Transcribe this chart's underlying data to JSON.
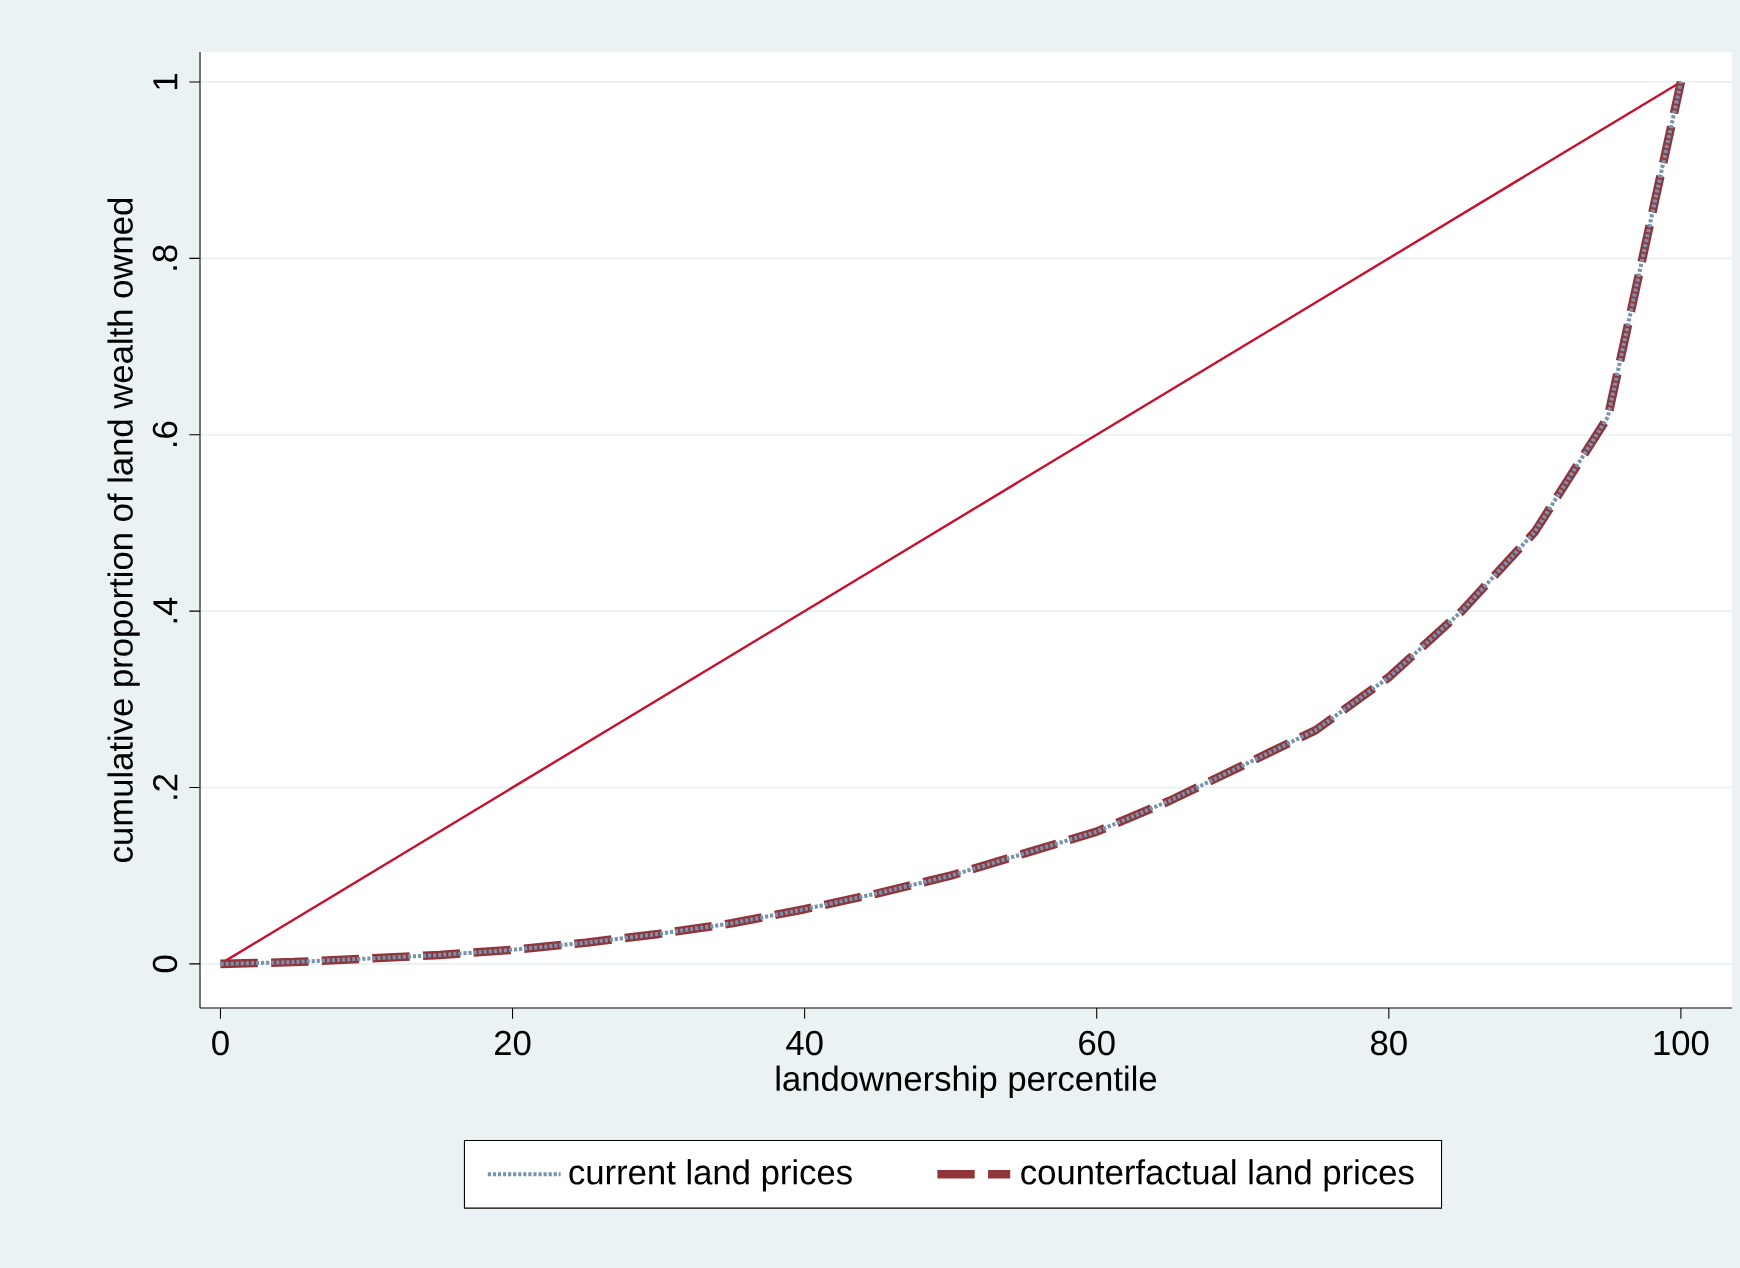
{
  "chart_data": {
    "type": "line",
    "xlabel": "landownership percentile",
    "ylabel": "cumulative proportion of land wealth owned",
    "x": [
      0,
      5,
      10,
      15,
      20,
      25,
      30,
      35,
      40,
      45,
      50,
      55,
      60,
      65,
      70,
      75,
      80,
      85,
      90,
      95,
      100
    ],
    "series": [
      {
        "name": "current land prices",
        "color": "#7893ad",
        "line_style": "dotted",
        "values": [
          0,
          0.002,
          0.006,
          0.01,
          0.016,
          0.024,
          0.034,
          0.046,
          0.062,
          0.08,
          0.1,
          0.125,
          0.15,
          0.185,
          0.225,
          0.265,
          0.325,
          0.4,
          0.49,
          0.62,
          1
        ]
      },
      {
        "name": "counterfactual land prices",
        "color": "#90353b",
        "line_style": "dashed",
        "values": [
          0,
          0.002,
          0.006,
          0.01,
          0.016,
          0.024,
          0.034,
          0.046,
          0.062,
          0.08,
          0.1,
          0.125,
          0.15,
          0.185,
          0.225,
          0.265,
          0.325,
          0.4,
          0.49,
          0.62,
          1
        ]
      },
      {
        "color": "#c8102e",
        "line_style": "solid",
        "x": [
          0,
          100
        ],
        "values": [
          0,
          1
        ]
      }
    ],
    "xlim": [
      -1.4,
      103.5
    ],
    "ylim": [
      -0.05,
      1.034
    ],
    "xticks": [
      0,
      20,
      40,
      60,
      80,
      100
    ],
    "yticks": [
      {
        "value": 0,
        "label": "0"
      },
      {
        "value": 0.2,
        "label": ".2"
      },
      {
        "value": 0.4,
        "label": ".4"
      },
      {
        "value": 0.6,
        "label": ".6"
      },
      {
        "value": 0.8,
        "label": ".8"
      },
      {
        "value": 1,
        "label": "1"
      }
    ],
    "grid": "y",
    "legend": "bottom"
  }
}
